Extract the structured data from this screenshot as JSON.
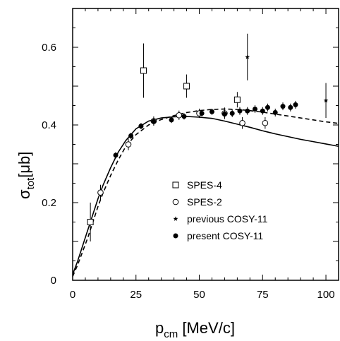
{
  "chart_data": {
    "type": "scatter",
    "title": "",
    "xlabel": {
      "main": "p",
      "sub": "cm",
      "rest": " [MeV/c]"
    },
    "ylabel": {
      "main": "σ",
      "sub": "tot",
      "rest": "[μb]"
    },
    "xlim": [
      0,
      105
    ],
    "ylim": [
      0,
      0.7
    ],
    "x_ticks": [
      0,
      25,
      50,
      75,
      100
    ],
    "y_ticks": [
      0,
      0.2,
      0.4,
      0.6
    ],
    "y_tick_labels": [
      "0",
      "0.2",
      "0.4",
      "0.6"
    ],
    "grid": false,
    "legend_position": "bottom-right",
    "series": [
      {
        "name": "SPES-4",
        "marker": "open-square",
        "points": [
          {
            "x": 7,
            "y": 0.15,
            "err": 0.05
          },
          {
            "x": 28,
            "y": 0.54,
            "err": 0.07
          },
          {
            "x": 45,
            "y": 0.5,
            "err": 0.03
          },
          {
            "x": 65,
            "y": 0.465,
            "err": 0.02
          }
        ]
      },
      {
        "name": "SPES-2",
        "marker": "open-circle",
        "points": [
          {
            "x": 11,
            "y": 0.226,
            "err": 0.02
          },
          {
            "x": 22,
            "y": 0.35,
            "err": 0.015
          },
          {
            "x": 32,
            "y": 0.41,
            "err": 0.012
          },
          {
            "x": 42,
            "y": 0.425,
            "err": 0.012
          },
          {
            "x": 50,
            "y": 0.43,
            "err": 0.012
          },
          {
            "x": 60,
            "y": 0.43,
            "err": 0.015
          },
          {
            "x": 67,
            "y": 0.405,
            "err": 0.015
          },
          {
            "x": 76,
            "y": 0.405,
            "err": 0.015
          }
        ]
      },
      {
        "name": "previous COSY-11",
        "marker": "star",
        "points": [
          {
            "x": 69,
            "y": 0.575,
            "err": 0.06
          },
          {
            "x": 100,
            "y": 0.463,
            "err": 0.045
          }
        ]
      },
      {
        "name": "present COSY-11",
        "marker": "filled-circle",
        "points": [
          {
            "x": 17,
            "y": 0.322,
            "err": 0.008
          },
          {
            "x": 23,
            "y": 0.372,
            "err": 0.008
          },
          {
            "x": 27,
            "y": 0.397,
            "err": 0.008
          },
          {
            "x": 32,
            "y": 0.409,
            "err": 0.008
          },
          {
            "x": 39,
            "y": 0.413,
            "err": 0.008
          },
          {
            "x": 44,
            "y": 0.422,
            "err": 0.008
          },
          {
            "x": 51,
            "y": 0.43,
            "err": 0.008
          },
          {
            "x": 55,
            "y": 0.434,
            "err": 0.008
          },
          {
            "x": 60,
            "y": 0.428,
            "err": 0.01
          },
          {
            "x": 63,
            "y": 0.43,
            "err": 0.01
          },
          {
            "x": 66,
            "y": 0.436,
            "err": 0.01
          },
          {
            "x": 69,
            "y": 0.436,
            "err": 0.01
          },
          {
            "x": 72,
            "y": 0.441,
            "err": 0.01
          },
          {
            "x": 75,
            "y": 0.436,
            "err": 0.01
          },
          {
            "x": 77,
            "y": 0.445,
            "err": 0.01
          },
          {
            "x": 80,
            "y": 0.432,
            "err": 0.01
          },
          {
            "x": 83,
            "y": 0.448,
            "err": 0.01
          },
          {
            "x": 86,
            "y": 0.445,
            "err": 0.01
          },
          {
            "x": 88,
            "y": 0.452,
            "err": 0.01
          }
        ]
      }
    ],
    "curves": [
      {
        "style": "solid",
        "points": [
          [
            0,
            0.015
          ],
          [
            2,
            0.05
          ],
          [
            4,
            0.09
          ],
          [
            6,
            0.13
          ],
          [
            8,
            0.17
          ],
          [
            10,
            0.21
          ],
          [
            12,
            0.245
          ],
          [
            15,
            0.29
          ],
          [
            18,
            0.33
          ],
          [
            21,
            0.36
          ],
          [
            25,
            0.39
          ],
          [
            30,
            0.41
          ],
          [
            35,
            0.418
          ],
          [
            40,
            0.421
          ],
          [
            45,
            0.422
          ],
          [
            50,
            0.42
          ],
          [
            55,
            0.417
          ],
          [
            60,
            0.41
          ],
          [
            65,
            0.402
          ],
          [
            70,
            0.394
          ],
          [
            75,
            0.385
          ],
          [
            80,
            0.377
          ],
          [
            85,
            0.37
          ],
          [
            90,
            0.363
          ],
          [
            95,
            0.357
          ],
          [
            100,
            0.351
          ],
          [
            105,
            0.345
          ]
        ]
      },
      {
        "style": "dashed",
        "points": [
          [
            0,
            0.01
          ],
          [
            2,
            0.04
          ],
          [
            4,
            0.075
          ],
          [
            6,
            0.11
          ],
          [
            8,
            0.15
          ],
          [
            10,
            0.19
          ],
          [
            12,
            0.225
          ],
          [
            15,
            0.27
          ],
          [
            18,
            0.31
          ],
          [
            21,
            0.345
          ],
          [
            25,
            0.375
          ],
          [
            30,
            0.4
          ],
          [
            35,
            0.414
          ],
          [
            40,
            0.424
          ],
          [
            45,
            0.432
          ],
          [
            50,
            0.437
          ],
          [
            55,
            0.44
          ],
          [
            60,
            0.441
          ],
          [
            65,
            0.44
          ],
          [
            70,
            0.437
          ],
          [
            75,
            0.433
          ],
          [
            80,
            0.428
          ],
          [
            85,
            0.423
          ],
          [
            90,
            0.418
          ],
          [
            95,
            0.413
          ],
          [
            100,
            0.408
          ],
          [
            105,
            0.404
          ]
        ]
      }
    ]
  }
}
